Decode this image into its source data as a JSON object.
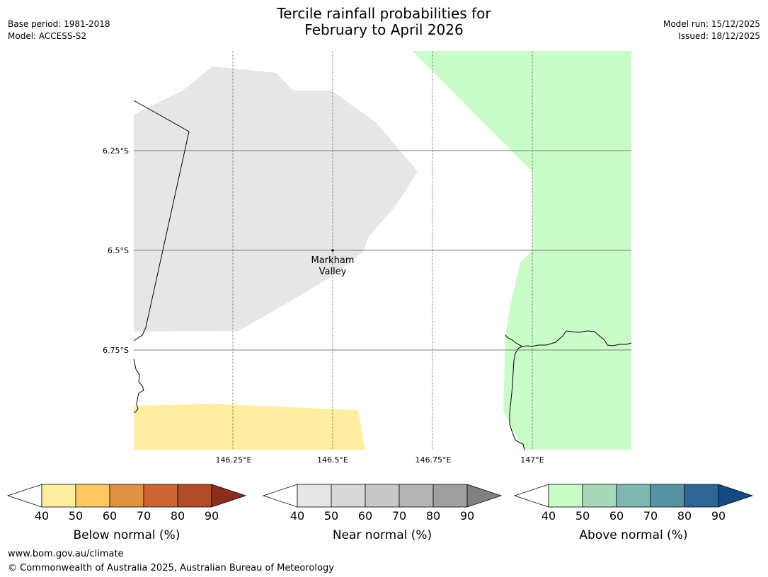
{
  "title": {
    "line1": "Tercile rainfall probabilities for",
    "line2": "February to April 2026"
  },
  "meta": {
    "base_period": "Base period: 1981-2018",
    "model": "Model: ACCESS-S2",
    "model_run": "Model run: 15/12/2025",
    "issued": "Issued: 18/12/2025"
  },
  "map": {
    "lat_labels": [
      "6.25°S",
      "6.5°S",
      "6.75°S"
    ],
    "lon_labels": [
      "146.25°E",
      "146.5°E",
      "146.75°E",
      "147°E"
    ],
    "place": {
      "line1": "Markham",
      "line2": "Valley"
    },
    "colors": {
      "near_normal_fill": "#e6e6e6",
      "above_normal_fill": "#c9fcc9",
      "below_normal_fill": "#ffeda0",
      "gridline": "#555555",
      "coastline": "#000000"
    }
  },
  "legends": [
    {
      "title": "Below normal (%)",
      "ticks": [
        "40",
        "50",
        "60",
        "70",
        "80",
        "90"
      ],
      "colors": [
        "#ffeda0",
        "#fec962",
        "#e09142",
        "#cc6533",
        "#b04a27",
        "#8c2d1b"
      ]
    },
    {
      "title": "Near normal (%)",
      "ticks": [
        "40",
        "50",
        "60",
        "70",
        "80",
        "90"
      ],
      "colors": [
        "#e6e6e6",
        "#d8d8d8",
        "#c8c8c8",
        "#b5b5b5",
        "#a0a0a0",
        "#808080"
      ]
    },
    {
      "title": "Above normal (%)",
      "ticks": [
        "40",
        "50",
        "60",
        "70",
        "80",
        "90"
      ],
      "colors": [
        "#c9fcc9",
        "#a6d8b9",
        "#80b6b0",
        "#5792a2",
        "#2f6497",
        "#144a82"
      ]
    }
  ],
  "footer": {
    "url": "www.bom.gov.au/climate",
    "copyright": "© Commonwealth of Australia 2025, Australian Bureau of Meteorology"
  }
}
